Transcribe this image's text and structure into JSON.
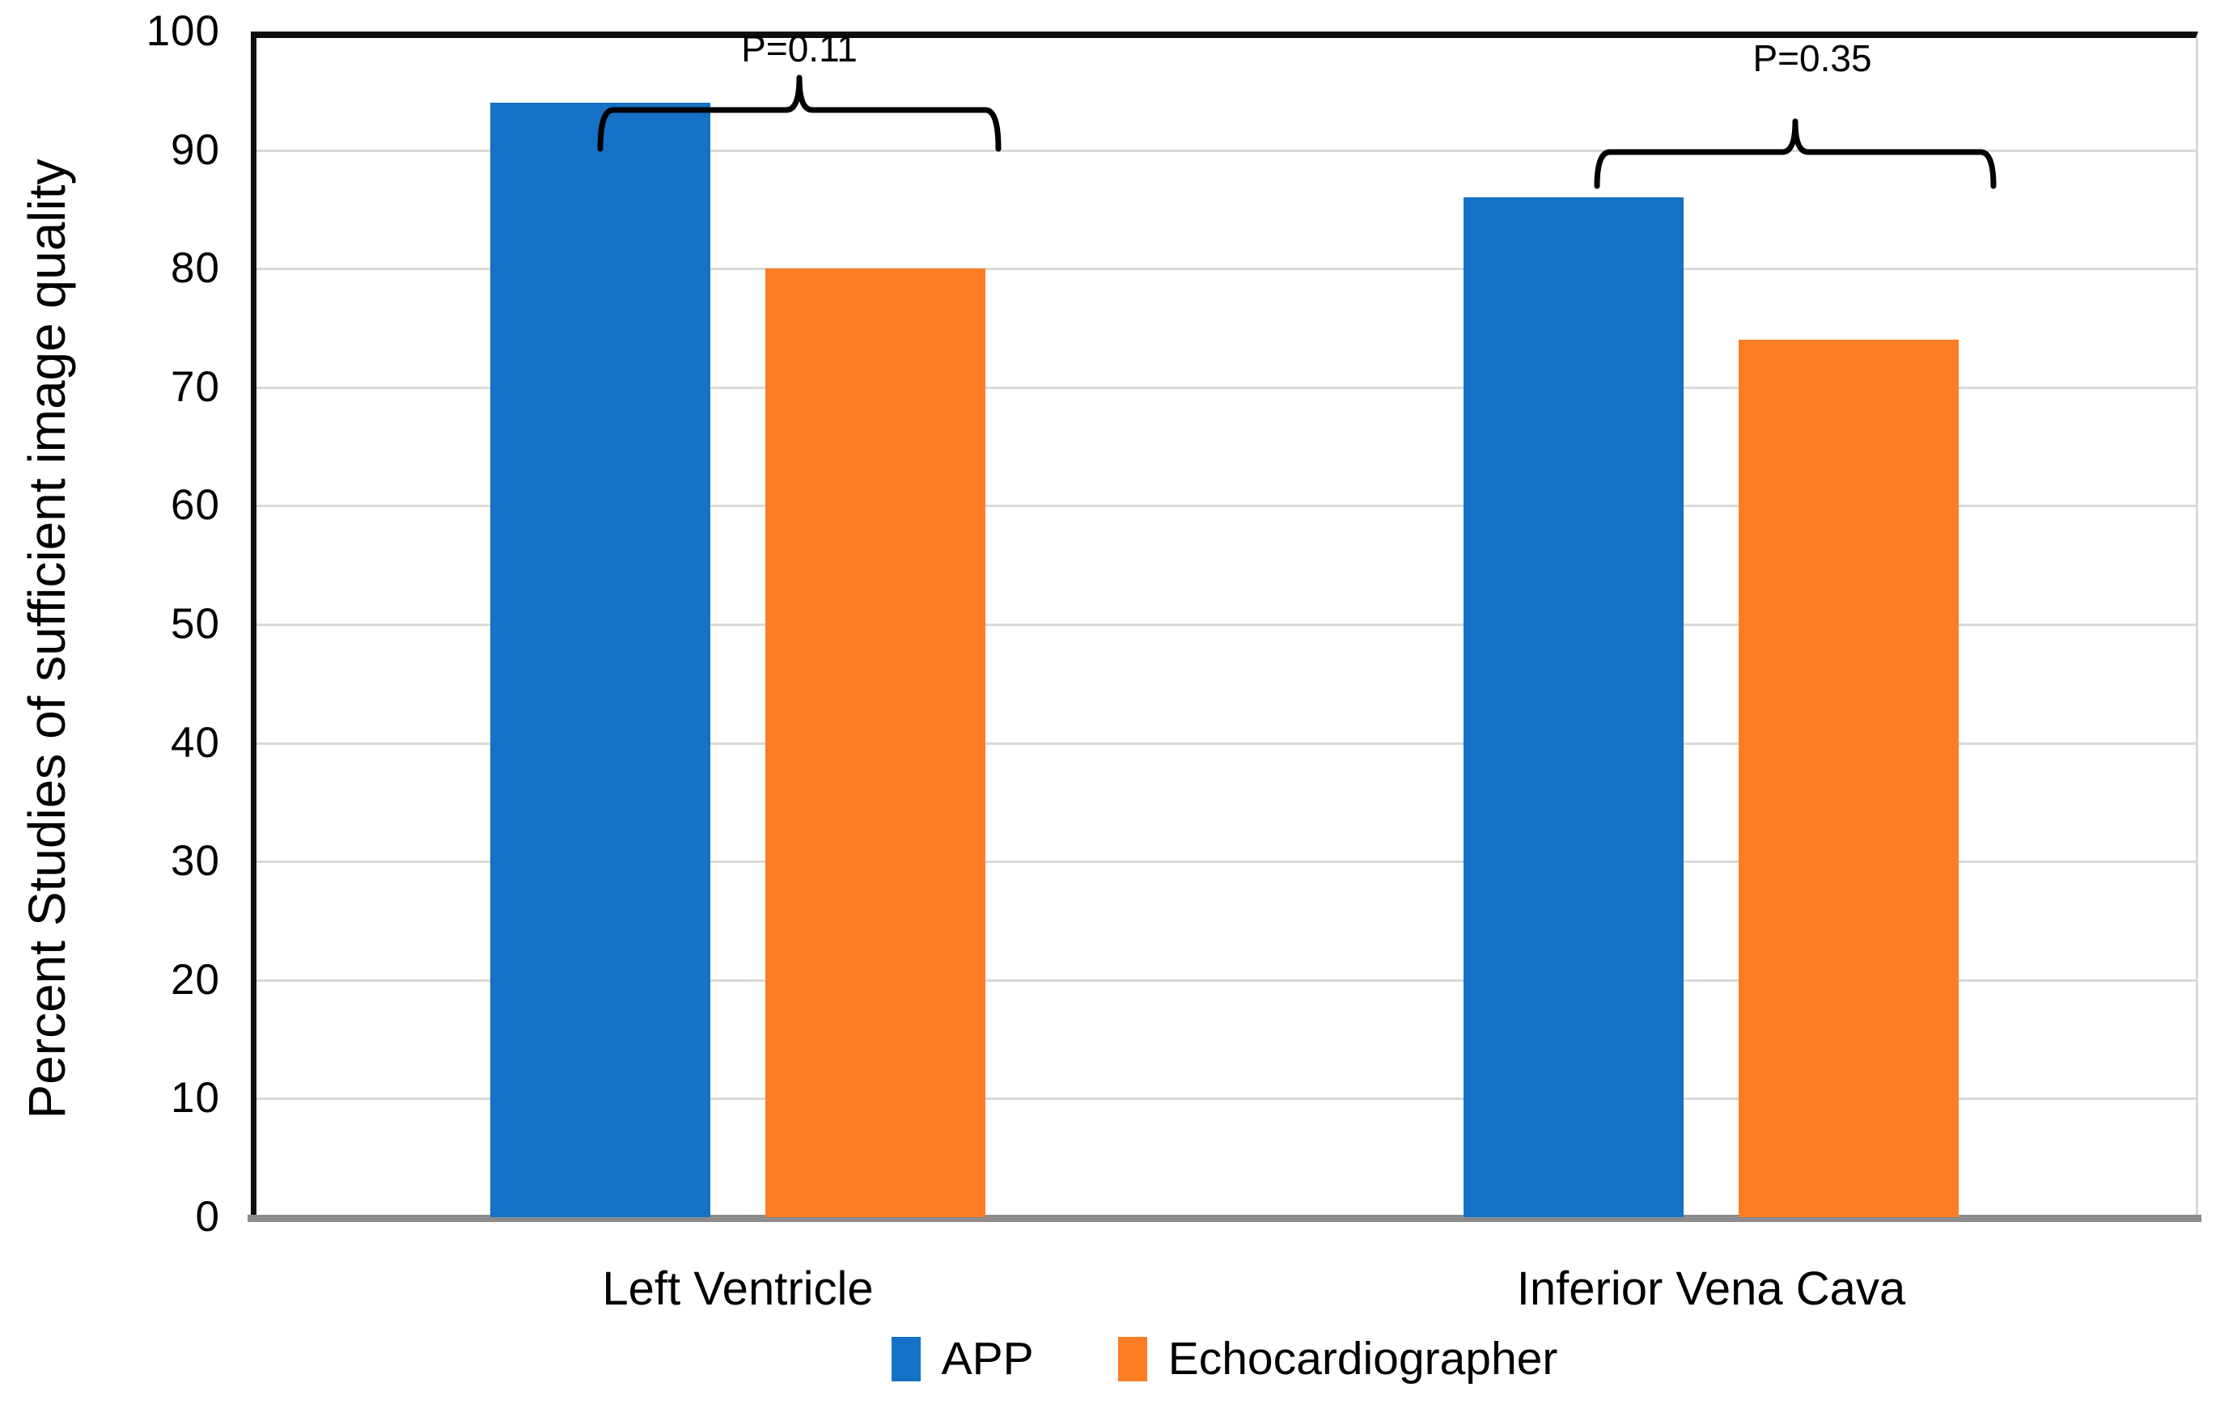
{
  "chart_data": {
    "type": "bar",
    "ylabel": "Percent Studies of sufficient image quality",
    "ylim": [
      0,
      100
    ],
    "y_ticks": [
      0,
      10,
      20,
      30,
      40,
      50,
      60,
      70,
      80,
      90,
      100
    ],
    "grid": true,
    "legend_position": "bottom",
    "categories": [
      "Left Ventricle",
      "Inferior Vena Cava"
    ],
    "series": [
      {
        "name": "APP",
        "color": "#1572c6",
        "values": [
          94,
          86
        ]
      },
      {
        "name": "Echocardiographer",
        "color": "#fc7d24",
        "values": [
          80,
          74
        ]
      }
    ],
    "annotations": [
      {
        "label": "P=0.11",
        "category": "Left Ventricle",
        "compares": [
          "APP",
          "Echocardiographer"
        ]
      },
      {
        "label": "P=0.35",
        "category": "Inferior Vena Cava",
        "compares": [
          "APP",
          "Echocardiographer"
        ]
      }
    ]
  }
}
